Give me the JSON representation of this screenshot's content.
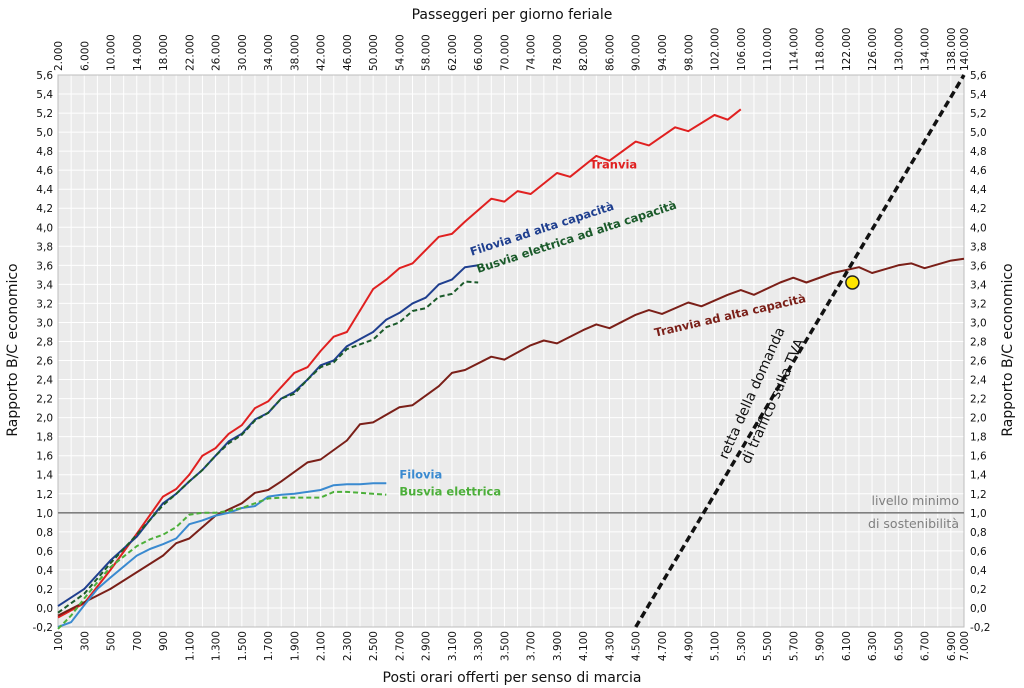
{
  "chart_data": {
    "type": "line",
    "title_top": "Passeggeri per giorno feriale",
    "xlabel": "Posti orari offerti per senso di marcia",
    "ylabel_left": "Rapporto B/C economico",
    "ylabel_right": "Rapporto B/C economico",
    "xlim": [
      100,
      7000
    ],
    "ylim": [
      -0.2,
      5.6
    ],
    "x_ticks": [
      "100",
      "300",
      "500",
      "700",
      "900",
      "1.100",
      "1.300",
      "1.500",
      "1.700",
      "1.900",
      "2.100",
      "2.300",
      "2.500",
      "2.700",
      "2.900",
      "3.100",
      "3.300",
      "3.500",
      "3.700",
      "3.900",
      "4.100",
      "4.300",
      "4.500",
      "4.700",
      "4.900",
      "5.100",
      "5.300",
      "5.500",
      "5.700",
      "5.900",
      "6.100",
      "6.300",
      "6.500",
      "6.700",
      "6.900",
      "7.000"
    ],
    "top_ticks": [
      "2.000",
      "6.000",
      "10.000",
      "14.000",
      "18.000",
      "22.000",
      "26.000",
      "30.000",
      "34.000",
      "38.000",
      "42.000",
      "46.000",
      "50.000",
      "54.000",
      "58.000",
      "62.000",
      "66.000",
      "70.000",
      "74.000",
      "78.000",
      "82.000",
      "86.000",
      "90.000",
      "94.000",
      "98.000",
      "102.000",
      "106.000",
      "110.000",
      "114.000",
      "118.000",
      "122.000",
      "126.000",
      "130.000",
      "134.000",
      "138.000",
      "140.000"
    ],
    "y_ticks": [
      "-0,2",
      "0,0",
      "0,2",
      "0,4",
      "0,6",
      "0,8",
      "1,0",
      "1,2",
      "1,4",
      "1,6",
      "1,8",
      "2,0",
      "2,2",
      "2,4",
      "2,6",
      "2,8",
      "3,0",
      "3,2",
      "3,4",
      "3,6",
      "3,8",
      "4,0",
      "4,2",
      "4,4",
      "4,6",
      "4,8",
      "5,0",
      "5,2",
      "5,4",
      "5,6"
    ],
    "threshold": {
      "y": 1.0,
      "label_line1": "livello minimo",
      "label_line2": "di sostenibilità",
      "color": "#7f7f7f"
    },
    "series": [
      {
        "name": "Tranvia",
        "color": "#e02020",
        "dash": false,
        "label_at": [
          4150,
          4.62
        ],
        "label_rotate": 0,
        "points": [
          [
            100,
            -0.1
          ],
          [
            300,
            0.05
          ],
          [
            500,
            0.4
          ],
          [
            700,
            0.78
          ],
          [
            900,
            1.17
          ],
          [
            1000,
            1.25
          ],
          [
            1100,
            1.4
          ],
          [
            1200,
            1.6
          ],
          [
            1300,
            1.68
          ],
          [
            1400,
            1.83
          ],
          [
            1500,
            1.92
          ],
          [
            1600,
            2.1
          ],
          [
            1700,
            2.17
          ],
          [
            1900,
            2.47
          ],
          [
            2000,
            2.53
          ],
          [
            2100,
            2.7
          ],
          [
            2200,
            2.85
          ],
          [
            2300,
            2.9
          ],
          [
            2500,
            3.35
          ],
          [
            2600,
            3.45
          ],
          [
            2700,
            3.57
          ],
          [
            2800,
            3.62
          ],
          [
            3000,
            3.9
          ],
          [
            3100,
            3.93
          ],
          [
            3200,
            4.06
          ],
          [
            3400,
            4.3
          ],
          [
            3500,
            4.27
          ],
          [
            3600,
            4.38
          ],
          [
            3700,
            4.35
          ],
          [
            3900,
            4.57
          ],
          [
            4000,
            4.53
          ],
          [
            4200,
            4.75
          ],
          [
            4300,
            4.7
          ],
          [
            4500,
            4.9
          ],
          [
            4600,
            4.86
          ],
          [
            4800,
            5.05
          ],
          [
            4900,
            5.01
          ],
          [
            5100,
            5.18
          ],
          [
            5200,
            5.13
          ],
          [
            5300,
            5.24
          ]
        ]
      },
      {
        "name": "Filovia ad alta capacità",
        "color": "#1f3f8f",
        "dash": false,
        "label_at": [
          3250,
          3.7
        ],
        "label_rotate": -18,
        "points": [
          [
            100,
            0.02
          ],
          [
            300,
            0.2
          ],
          [
            500,
            0.5
          ],
          [
            700,
            0.75
          ],
          [
            900,
            1.1
          ],
          [
            1000,
            1.2
          ],
          [
            1100,
            1.33
          ],
          [
            1200,
            1.45
          ],
          [
            1300,
            1.6
          ],
          [
            1400,
            1.75
          ],
          [
            1500,
            1.83
          ],
          [
            1600,
            1.98
          ],
          [
            1700,
            2.05
          ],
          [
            1800,
            2.2
          ],
          [
            1900,
            2.27
          ],
          [
            2000,
            2.4
          ],
          [
            2100,
            2.55
          ],
          [
            2200,
            2.6
          ],
          [
            2300,
            2.75
          ],
          [
            2500,
            2.9
          ],
          [
            2600,
            3.03
          ],
          [
            2700,
            3.1
          ],
          [
            2800,
            3.2
          ],
          [
            2900,
            3.26
          ],
          [
            3000,
            3.4
          ],
          [
            3100,
            3.45
          ],
          [
            3200,
            3.58
          ],
          [
            3300,
            3.6
          ]
        ]
      },
      {
        "name": "Busvia elettrica ad alta capacità",
        "color": "#1a5a2a",
        "dash": true,
        "label_at": [
          3300,
          3.52
        ],
        "label_rotate": -18,
        "points": [
          [
            100,
            -0.05
          ],
          [
            300,
            0.15
          ],
          [
            500,
            0.47
          ],
          [
            700,
            0.77
          ],
          [
            900,
            1.08
          ],
          [
            1000,
            1.2
          ],
          [
            1100,
            1.33
          ],
          [
            1200,
            1.45
          ],
          [
            1300,
            1.6
          ],
          [
            1400,
            1.73
          ],
          [
            1500,
            1.82
          ],
          [
            1600,
            1.97
          ],
          [
            1700,
            2.05
          ],
          [
            1800,
            2.2
          ],
          [
            1900,
            2.25
          ],
          [
            2000,
            2.4
          ],
          [
            2100,
            2.53
          ],
          [
            2200,
            2.58
          ],
          [
            2300,
            2.72
          ],
          [
            2500,
            2.82
          ],
          [
            2600,
            2.95
          ],
          [
            2700,
            3.0
          ],
          [
            2800,
            3.12
          ],
          [
            2900,
            3.15
          ],
          [
            3000,
            3.27
          ],
          [
            3100,
            3.3
          ],
          [
            3200,
            3.43
          ],
          [
            3300,
            3.42
          ]
        ]
      },
      {
        "name": "Tranvia ad alta capacità",
        "color": "#7a1f18",
        "dash": false,
        "label_at": [
          4650,
          2.85
        ],
        "label_rotate": -13,
        "points": [
          [
            100,
            -0.08
          ],
          [
            500,
            0.2
          ],
          [
            900,
            0.55
          ],
          [
            1000,
            0.68
          ],
          [
            1100,
            0.73
          ],
          [
            1300,
            0.97
          ],
          [
            1500,
            1.1
          ],
          [
            1600,
            1.21
          ],
          [
            1700,
            1.24
          ],
          [
            1800,
            1.33
          ],
          [
            2000,
            1.53
          ],
          [
            2100,
            1.56
          ],
          [
            2300,
            1.76
          ],
          [
            2400,
            1.93
          ],
          [
            2500,
            1.95
          ],
          [
            2700,
            2.11
          ],
          [
            2800,
            2.13
          ],
          [
            3000,
            2.33
          ],
          [
            3100,
            2.47
          ],
          [
            3200,
            2.5
          ],
          [
            3400,
            2.64
          ],
          [
            3500,
            2.61
          ],
          [
            3700,
            2.76
          ],
          [
            3800,
            2.81
          ],
          [
            3900,
            2.78
          ],
          [
            4100,
            2.92
          ],
          [
            4200,
            2.98
          ],
          [
            4300,
            2.94
          ],
          [
            4500,
            3.08
          ],
          [
            4600,
            3.13
          ],
          [
            4700,
            3.09
          ],
          [
            4900,
            3.21
          ],
          [
            5000,
            3.17
          ],
          [
            5200,
            3.29
          ],
          [
            5300,
            3.34
          ],
          [
            5400,
            3.29
          ],
          [
            5600,
            3.42
          ],
          [
            5700,
            3.47
          ],
          [
            5800,
            3.42
          ],
          [
            6000,
            3.52
          ],
          [
            6200,
            3.58
          ],
          [
            6300,
            3.52
          ],
          [
            6500,
            3.6
          ],
          [
            6600,
            3.62
          ],
          [
            6700,
            3.57
          ],
          [
            6900,
            3.65
          ],
          [
            7000,
            3.67
          ]
        ]
      },
      {
        "name": "Filovia",
        "color": "#3a8ad0",
        "dash": false,
        "label_at": [
          2700,
          1.36
        ],
        "label_rotate": 0,
        "points": [
          [
            100,
            -0.2
          ],
          [
            200,
            -0.15
          ],
          [
            300,
            0.03
          ],
          [
            400,
            0.2
          ],
          [
            500,
            0.32
          ],
          [
            700,
            0.55
          ],
          [
            800,
            0.62
          ],
          [
            900,
            0.67
          ],
          [
            1000,
            0.73
          ],
          [
            1100,
            0.88
          ],
          [
            1200,
            0.92
          ],
          [
            1300,
            0.97
          ],
          [
            1400,
            1.0
          ],
          [
            1500,
            1.05
          ],
          [
            1600,
            1.07
          ],
          [
            1700,
            1.17
          ],
          [
            1800,
            1.19
          ],
          [
            1900,
            1.2
          ],
          [
            2000,
            1.22
          ],
          [
            2100,
            1.24
          ],
          [
            2200,
            1.29
          ],
          [
            2300,
            1.3
          ],
          [
            2400,
            1.3
          ],
          [
            2500,
            1.31
          ],
          [
            2600,
            1.31
          ]
        ]
      },
      {
        "name": "Busvia elettrica",
        "color": "#4caf3a",
        "dash": true,
        "label_at": [
          2700,
          1.18
        ],
        "label_rotate": 0,
        "points": [
          [
            100,
            -0.22
          ],
          [
            200,
            -0.08
          ],
          [
            300,
            0.1
          ],
          [
            400,
            0.27
          ],
          [
            500,
            0.43
          ],
          [
            700,
            0.65
          ],
          [
            800,
            0.72
          ],
          [
            900,
            0.77
          ],
          [
            1000,
            0.85
          ],
          [
            1100,
            0.98
          ],
          [
            1200,
            1.0
          ],
          [
            1300,
            1.0
          ],
          [
            1400,
            1.02
          ],
          [
            1500,
            1.05
          ],
          [
            1600,
            1.1
          ],
          [
            1700,
            1.15
          ],
          [
            1800,
            1.16
          ],
          [
            1900,
            1.16
          ],
          [
            2000,
            1.16
          ],
          [
            2100,
            1.16
          ],
          [
            2200,
            1.22
          ],
          [
            2300,
            1.22
          ],
          [
            2400,
            1.21
          ],
          [
            2500,
            1.2
          ],
          [
            2600,
            1.19
          ]
        ]
      }
    ],
    "demand_line": {
      "label_line1": "retta della domanda",
      "label_line2": "di traffico sulla TVA",
      "from": [
        4500,
        -0.2
      ],
      "to": [
        7000,
        5.6
      ],
      "color": "#111111"
    },
    "intersection": {
      "x": 6150,
      "y": 3.42,
      "color": "#ffe600"
    }
  }
}
